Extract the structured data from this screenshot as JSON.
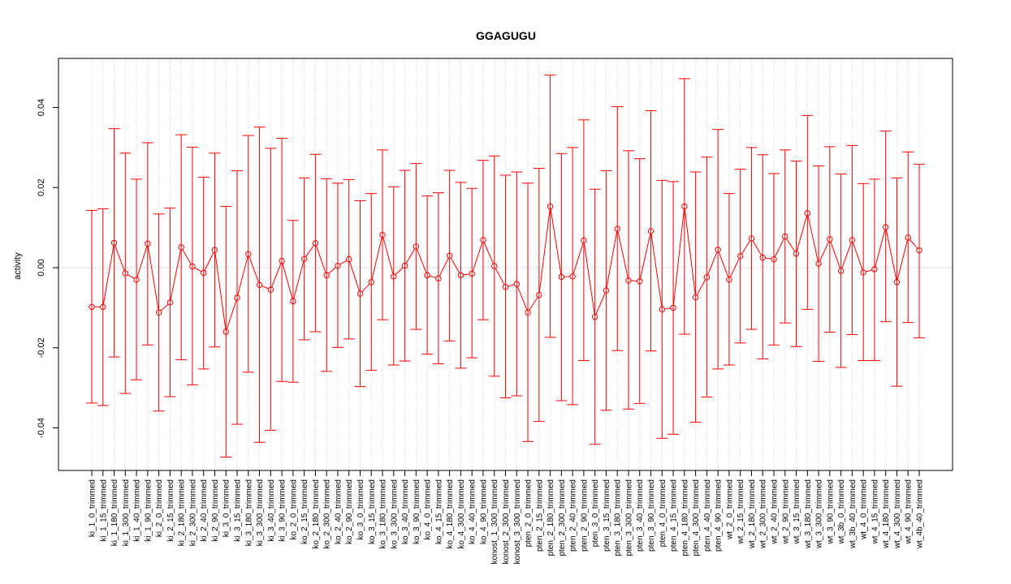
{
  "chart_data": {
    "type": "line",
    "title": "GGAGUGU",
    "xlabel": "",
    "ylabel": "activity",
    "ylim": [
      -0.051,
      0.052
    ],
    "yticks": [
      -0.04,
      -0.02,
      0.0,
      0.02,
      0.04
    ],
    "ytick_labels": [
      "-0.04",
      "-0.02",
      "0.00",
      "0.02",
      "0.04"
    ],
    "reference_line": 0.0,
    "grid": "vertical dotted at each category",
    "color": "#ff0000",
    "categories": [
      "ki_1_0_trimmed",
      "ki_1_15_trimmed",
      "ki_1_180_trimmed",
      "ki_1_300_trimmed",
      "ki_1_40_trimmed",
      "ki_1_90_trimmed",
      "ki_2_0_trimmed",
      "ki_2_15_trimmed",
      "ki_2_180_trimmed",
      "ki_2_300_trimmed",
      "ki_2_40_trimmed",
      "ki_2_90_trimmed",
      "ki_3_0_trimmed",
      "ki_3_15_trimmed",
      "ki_3_180_trimmed",
      "ki_3_300_trimmed",
      "ki_3_40_trimmed",
      "ki_3_90_trimmed",
      "ko_2_0_trimmed",
      "ko_2_15_trimmed",
      "ko_2_180_trimmed",
      "ko_2_300_trimmed",
      "ko_2_40_trimmed",
      "ko_2_90_trimmed",
      "ko_3_0_trimmed",
      "ko_3_15_trimmed",
      "ko_3_180_trimmed",
      "ko_3_300_trimmed",
      "ko_3_40_trimmed",
      "ko_3_90_trimmed",
      "ko_4_0_trimmed",
      "ko_4_15_trimmed",
      "ko_4_180_trimmed",
      "ko_4_300_trimmed",
      "ko_4_40_trimmed",
      "ko_4_90_trimmed",
      "konost_1_300_trimmed",
      "konost_2_300_trimmed",
      "konost_3_300_trimmed",
      "pten_2_0_trimmed",
      "pten_2_15_trimmed",
      "pten_2_180_trimmed",
      "pten_2_300_trimmed",
      "pten_2_40_trimmed",
      "pten_2_90_trimmed",
      "pten_3_0_trimmed",
      "pten_3_15_trimmed",
      "pten_3_180_trimmed",
      "pten_3_300_trimmed",
      "pten_3_40_trimmed",
      "pten_3_90_trimmed",
      "pten_4_0_trimmed",
      "pten_4_15_trimmed",
      "pten_4_180_trimmed",
      "pten_4_300_trimmed",
      "pten_4_40_trimmed",
      "pten_4_90_trimmed",
      "wt_2_0_trimmed",
      "wt_2_15_trimmed",
      "wt_2_180_trimmed",
      "wt_2_300_trimmed",
      "wt_2_40_trimmed",
      "wt_2_90_trimmed",
      "wt_3_15_trimmed",
      "wt_3_180_trimmed",
      "wt_3_300_trimmed",
      "wt_3_90_trimmed",
      "wt_3b_0_trimmed",
      "wt_3b_40_trimmed",
      "wt_4_0_trimmed",
      "wt_4_15_trimmed",
      "wt_4_180_trimmed",
      "wt_4_300_trimmed",
      "wt_4_90_trimmed",
      "wt_4b_40_trimmed"
    ],
    "values": [
      -0.0098,
      -0.0098,
      0.0062,
      -0.0014,
      -0.003,
      0.006,
      -0.0112,
      -0.0087,
      0.0051,
      0.0003,
      -0.0013,
      0.0044,
      -0.016,
      -0.0075,
      0.0034,
      -0.0043,
      -0.0055,
      0.0017,
      -0.0084,
      0.0022,
      0.0061,
      -0.0019,
      0.0005,
      0.0021,
      -0.0065,
      -0.0036,
      0.0082,
      -0.0022,
      0.0005,
      0.0053,
      -0.0019,
      -0.0027,
      0.003,
      -0.0019,
      -0.0015,
      0.0069,
      0.0004,
      -0.0048,
      -0.0041,
      -0.0112,
      -0.0068,
      0.0153,
      -0.0023,
      -0.0022,
      0.0068,
      -0.0123,
      -0.0057,
      0.0097,
      -0.0032,
      -0.0034,
      0.0091,
      -0.0104,
      -0.01,
      0.0153,
      -0.0074,
      -0.0024,
      0.0045,
      -0.003,
      0.0029,
      0.0073,
      0.0025,
      0.0021,
      0.0078,
      0.0035,
      0.0136,
      0.001,
      0.0071,
      -0.0008,
      0.0069,
      -0.0012,
      -0.0004,
      0.0101,
      -0.0036,
      0.0075,
      0.0043
    ],
    "upper": [
      0.0143,
      0.0147,
      0.0347,
      0.0286,
      0.0221,
      0.0312,
      0.0134,
      0.0149,
      0.0332,
      0.0301,
      0.0226,
      0.0286,
      0.0153,
      0.0242,
      0.033,
      0.0351,
      0.0298,
      0.0323,
      0.0118,
      0.0224,
      0.0283,
      0.0222,
      0.0211,
      0.022,
      0.0167,
      0.0185,
      0.0294,
      0.0202,
      0.0243,
      0.026,
      0.0179,
      0.0187,
      0.0243,
      0.0213,
      0.0198,
      0.0268,
      0.0279,
      0.0231,
      0.0239,
      0.0211,
      0.0248,
      0.0481,
      0.0285,
      0.03,
      0.0369,
      0.0196,
      0.0242,
      0.0402,
      0.0292,
      0.0272,
      0.0392,
      0.0218,
      0.0215,
      0.0472,
      0.0239,
      0.0276,
      0.0345,
      0.0185,
      0.0246,
      0.03,
      0.0282,
      0.0235,
      0.0294,
      0.0266,
      0.038,
      0.0254,
      0.0302,
      0.0234,
      0.0305,
      0.021,
      0.0221,
      0.0341,
      0.0224,
      0.0289,
      0.0258
    ],
    "lower": [
      -0.0338,
      -0.0344,
      -0.0223,
      -0.0314,
      -0.028,
      -0.0193,
      -0.0358,
      -0.0322,
      -0.023,
      -0.0293,
      -0.0253,
      -0.0198,
      -0.0473,
      -0.0391,
      -0.0261,
      -0.0436,
      -0.0406,
      -0.0284,
      -0.0286,
      -0.018,
      -0.016,
      -0.0259,
      -0.0199,
      -0.0178,
      -0.0297,
      -0.0256,
      -0.013,
      -0.0243,
      -0.0233,
      -0.0154,
      -0.0216,
      -0.024,
      -0.0183,
      -0.0251,
      -0.0225,
      -0.013,
      -0.0271,
      -0.0325,
      -0.032,
      -0.0434,
      -0.0384,
      -0.0174,
      -0.0332,
      -0.0342,
      -0.0232,
      -0.0441,
      -0.0356,
      -0.0207,
      -0.0353,
      -0.0339,
      -0.0208,
      -0.0426,
      -0.0416,
      -0.0166,
      -0.0386,
      -0.0323,
      -0.0253,
      -0.0243,
      -0.0188,
      -0.0154,
      -0.0228,
      -0.0193,
      -0.0138,
      -0.0197,
      -0.0104,
      -0.0234,
      -0.0161,
      -0.0249,
      -0.0167,
      -0.0232,
      -0.0232,
      -0.0135,
      -0.0296,
      -0.0137,
      -0.0175
    ]
  }
}
